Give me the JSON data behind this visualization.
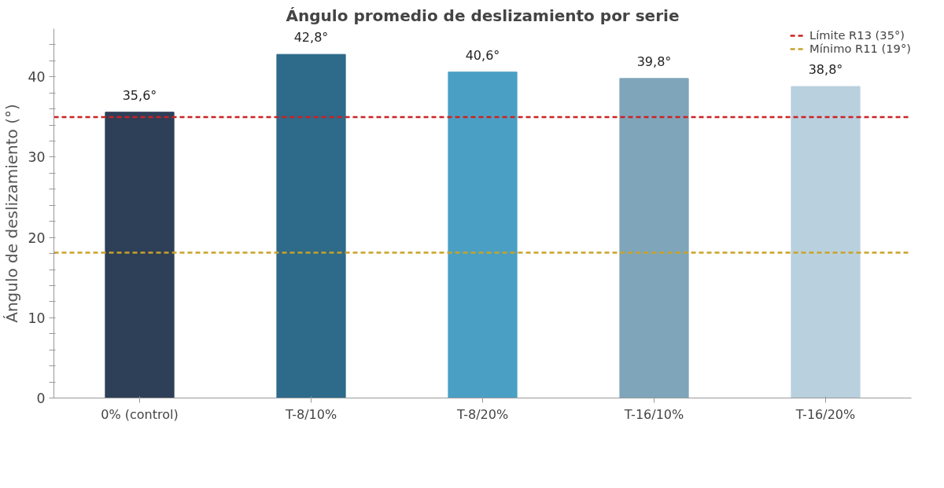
{
  "chart_data": {
    "type": "bar",
    "title": "Ángulo promedio de deslizamiento por serie",
    "ylabel": "Ángulo de deslizamiento (°)",
    "categories": [
      "0% (control)",
      "T-8/10%",
      "T-8/20%",
      "T-16/10%",
      "T-16/20%"
    ],
    "values": [
      35.6,
      42.8,
      40.6,
      39.8,
      38.8
    ],
    "colors": [
      "#2e3f58",
      "#2e6a8a",
      "#4aa0c4",
      "#7fa5bb",
      "#b9d0de"
    ],
    "value_labels": [
      "35,6°",
      "42,8°",
      "40,6°",
      "39,8°",
      "38,8°"
    ],
    "ylim": [
      0,
      46
    ],
    "yticks": [
      0,
      {
        "value": 2,
        "label": null
      },
      {
        "value": 4,
        "label": null
      },
      {
        "value": 6,
        "label": null
      },
      {
        "value": 8,
        "label": null
      },
      10,
      {
        "value": 12,
        "label": null
      },
      {
        "value": 14,
        "label": null
      },
      {
        "value": 16,
        "label": null
      },
      {
        "value": 18,
        "label": null
      },
      20,
      {
        "value": 22,
        "label": null
      },
      {
        "value": 24,
        "label": null
      },
      {
        "value": 26,
        "label": null
      },
      {
        "value": 28,
        "label": null
      },
      30,
      {
        "value": 32,
        "label": null
      },
      {
        "value": 34,
        "label": null
      },
      {
        "value": 36,
        "label": null
      },
      {
        "value": 38,
        "label": null
      },
      40,
      {
        "value": 42,
        "label": null
      },
      {
        "value": 44,
        "label": null
      }
    ],
    "ref_lines": [
      {
        "axis": "y",
        "value": 35,
        "label": "Límite R13 (35°)",
        "color": "#cc2222",
        "line_style": "dashed"
      },
      {
        "axis": "y",
        "value": 18.1,
        "label": "Mínimo R11 (19°)",
        "color": "#c9a227",
        "line_style": "dashed"
      }
    ],
    "legend": "top right",
    "grid": false
  }
}
